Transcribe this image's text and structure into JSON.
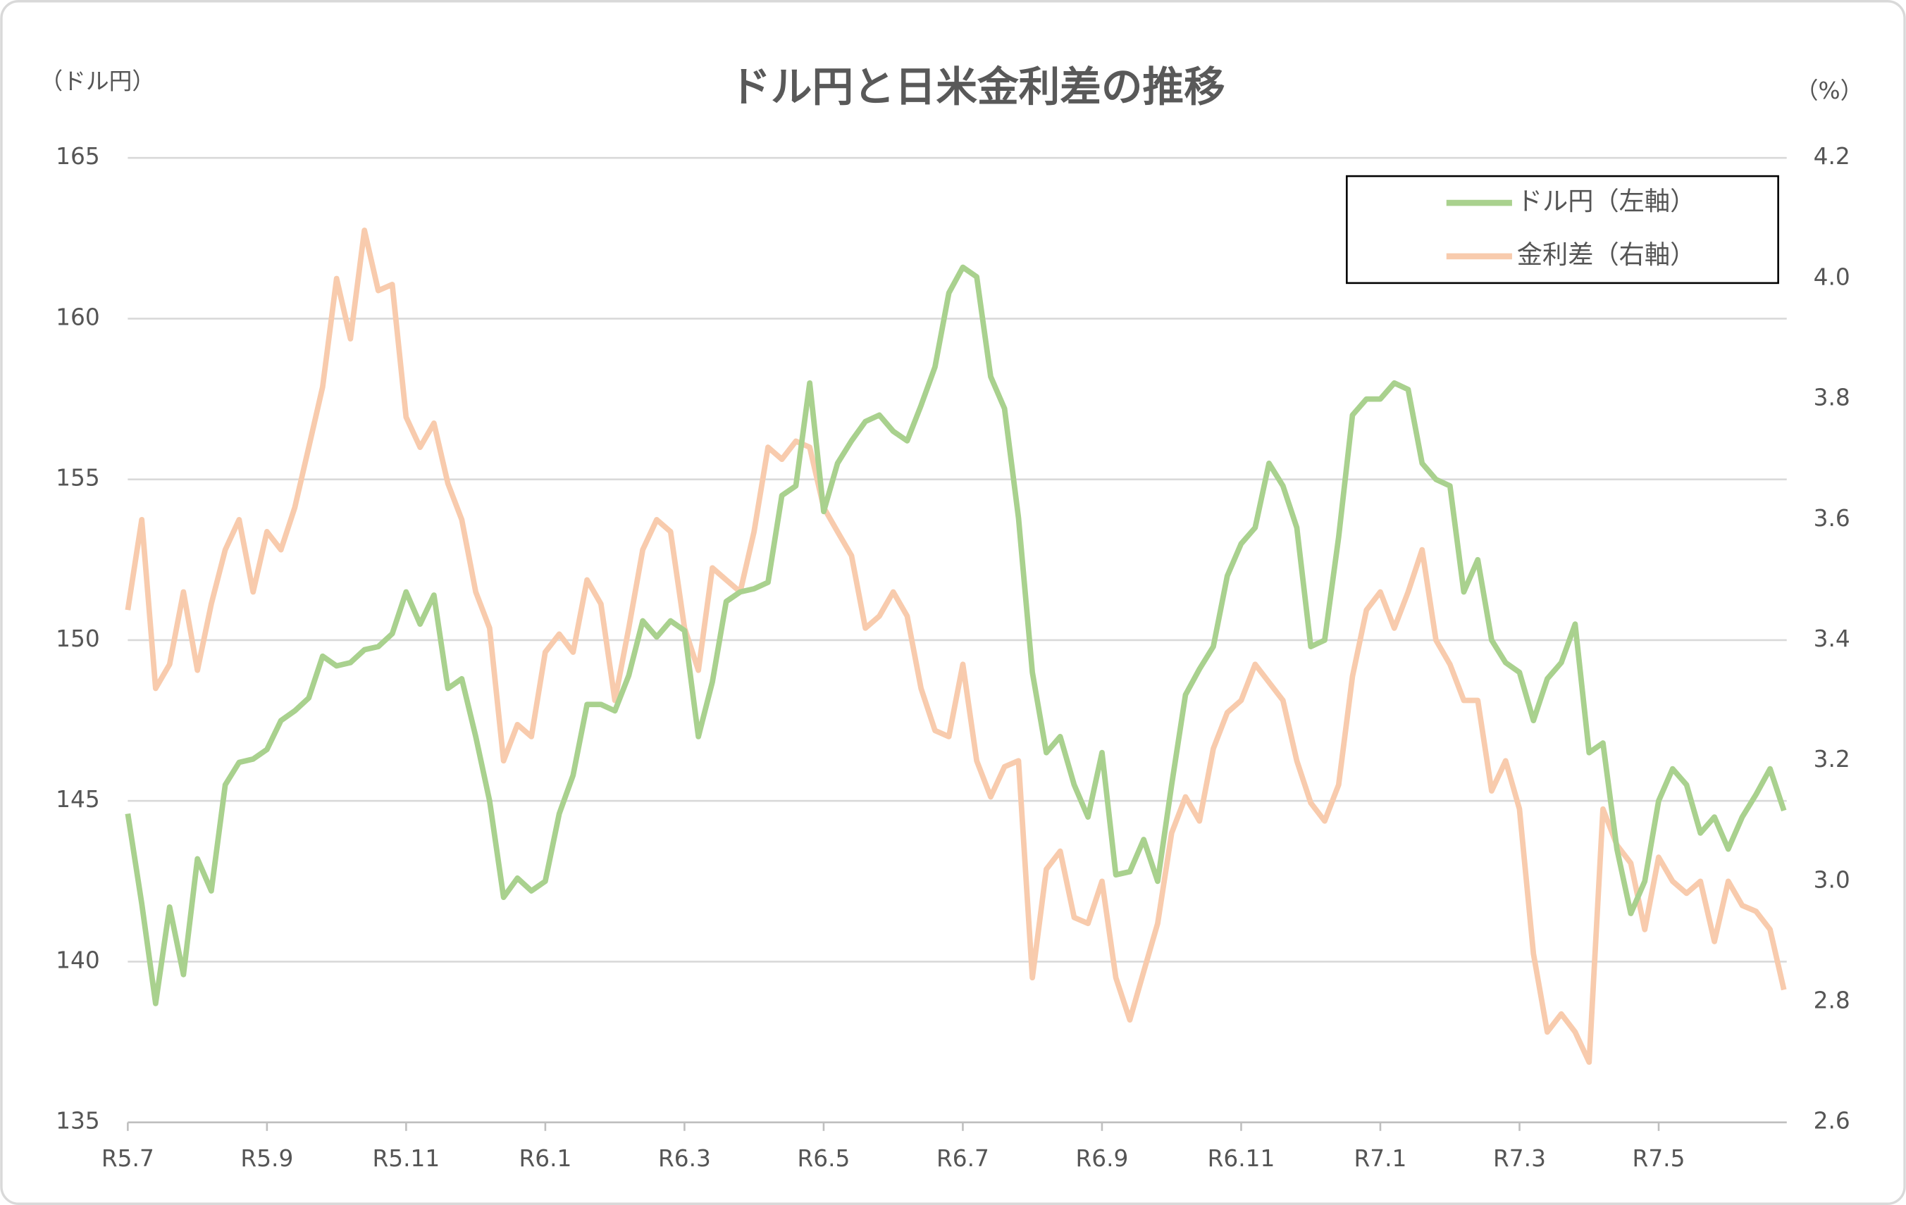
{
  "chart_data": {
    "type": "line",
    "title": "ドル円と日米金利差の推移",
    "y_label": "（ドル円）",
    "y2_label": "（%）",
    "categories": [
      "R5.7",
      null,
      null,
      null,
      null,
      null,
      null,
      null,
      null,
      null,
      "R5.9",
      null,
      null,
      null,
      null,
      null,
      null,
      null,
      null,
      null,
      "R5.11",
      null,
      null,
      null,
      null,
      null,
      null,
      null,
      null,
      null,
      "R6.1",
      null,
      null,
      null,
      null,
      null,
      null,
      null,
      null,
      null,
      "R6.3",
      null,
      null,
      null,
      null,
      null,
      null,
      null,
      null,
      null,
      "R6.5",
      null,
      null,
      null,
      null,
      null,
      null,
      null,
      null,
      null,
      "R6.7",
      null,
      null,
      null,
      null,
      null,
      null,
      null,
      null,
      null,
      "R6.9",
      null,
      null,
      null,
      null,
      null,
      null,
      null,
      null,
      null,
      "R6.11",
      null,
      null,
      null,
      null,
      null,
      null,
      null,
      null,
      null,
      "R7.1",
      null,
      null,
      null,
      null,
      null,
      null,
      null,
      null,
      null,
      "R7.3",
      null,
      null,
      null,
      null,
      null,
      null,
      null,
      null,
      null,
      "R7.5",
      null,
      null,
      null,
      null,
      null,
      null,
      null,
      null,
      null
    ],
    "series": [
      {
        "name": "ドル円（左軸）",
        "color": "#a9d18e",
        "axis": "y",
        "values": [
          144.6,
          141.8,
          138.7,
          141.7,
          139.6,
          143.2,
          142.2,
          145.5,
          146.2,
          146.3,
          146.6,
          147.5,
          147.8,
          148.2,
          149.5,
          149.2,
          149.3,
          149.7,
          149.8,
          150.2,
          151.5,
          150.5,
          151.4,
          148.5,
          148.8,
          147,
          145,
          142,
          142.6,
          142.2,
          142.5,
          144.6,
          145.8,
          148,
          148,
          147.8,
          148.9,
          150.6,
          150.1,
          150.6,
          150.3,
          147,
          148.7,
          151.2,
          151.5,
          151.6,
          151.8,
          154.5,
          154.8,
          158,
          154,
          155.5,
          156.2,
          156.8,
          157,
          156.5,
          156.2,
          157.3,
          158.5,
          160.8,
          161.6,
          161.3,
          158.2,
          157.2,
          153.8,
          149,
          146.5,
          147,
          145.5,
          144.5,
          146.5,
          142.7,
          142.8,
          143.8,
          142.5,
          145.5,
          148.3,
          149.1,
          149.8,
          152,
          153,
          153.5,
          155.5,
          154.8,
          153.5,
          149.8,
          150,
          153.2,
          157,
          157.5,
          157.5,
          158,
          157.8,
          155.5,
          155,
          154.8,
          151.5,
          152.5,
          150,
          149.3,
          149,
          147.5,
          148.8,
          149.3,
          150.5,
          146.5,
          146.8,
          143.5,
          141.5,
          142.5,
          145,
          146,
          145.5,
          144,
          144.5,
          143.5,
          144.5,
          145.2,
          146,
          144.7
        ]
      },
      {
        "name": "金利差（右軸）",
        "color": "#f8cbad",
        "axis": "y2",
        "values": [
          3.45,
          3.6,
          3.32,
          3.36,
          3.48,
          3.35,
          3.46,
          3.55,
          3.6,
          3.48,
          3.58,
          3.55,
          3.62,
          3.72,
          3.82,
          4.0,
          3.9,
          4.08,
          3.98,
          3.99,
          3.77,
          3.72,
          3.76,
          3.66,
          3.6,
          3.48,
          3.42,
          3.2,
          3.26,
          3.24,
          3.38,
          3.41,
          3.38,
          3.5,
          3.46,
          3.3,
          3.42,
          3.55,
          3.6,
          3.58,
          3.42,
          3.35,
          3.52,
          3.5,
          3.48,
          3.58,
          3.72,
          3.7,
          3.73,
          3.72,
          3.62,
          3.58,
          3.54,
          3.42,
          3.44,
          3.48,
          3.44,
          3.32,
          3.25,
          3.24,
          3.36,
          3.2,
          3.14,
          3.19,
          3.2,
          2.84,
          3.02,
          3.05,
          2.94,
          2.93,
          3.0,
          2.84,
          2.77,
          2.85,
          2.93,
          3.08,
          3.14,
          3.1,
          3.22,
          3.28,
          3.3,
          3.36,
          3.33,
          3.3,
          3.2,
          3.13,
          3.1,
          3.16,
          3.34,
          3.45,
          3.48,
          3.42,
          3.48,
          3.55,
          3.4,
          3.36,
          3.3,
          3.3,
          3.15,
          3.2,
          3.12,
          2.88,
          2.75,
          2.78,
          2.75,
          2.7,
          3.12,
          3.06,
          3.03,
          2.92,
          3.04,
          3.0,
          2.98,
          3.0,
          2.9,
          3.0,
          2.96,
          2.95,
          2.92,
          2.82
        ]
      }
    ],
    "ylim": [
      135,
      165
    ],
    "yticks": [
      135,
      140,
      145,
      150,
      155,
      160,
      165
    ],
    "y2lim": [
      2.6,
      4.2
    ],
    "y2ticks": [
      2.6,
      2.8,
      {
        "value": 3,
        "label": "3.0"
      },
      3.2,
      3.4,
      3.6,
      3.8,
      {
        "value": 4,
        "label": "4.0"
      },
      4.2
    ],
    "grid": true,
    "legend": "upper right"
  }
}
